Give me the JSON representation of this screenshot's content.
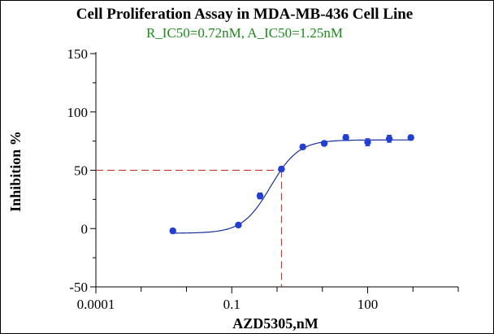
{
  "colors": {
    "subtitle": "#1a8a1a",
    "series": "#1f3fd6",
    "curve": "#1a2f9a",
    "guide": "#cc2222",
    "axis": "#000000"
  },
  "chart_data": {
    "type": "scatter",
    "title": "Cell Proliferation  Assay in  MDA-MB-436 Cell Line",
    "subtitle": "R_IC50=0.72nM,  A_IC50=1.25nM",
    "xlabel": "AZD5305,nM",
    "ylabel": "Inhibition  %",
    "x_scale": "log",
    "xlim": [
      0.0001,
      10000
    ],
    "ylim": [
      -50,
      150
    ],
    "x_ticks": [
      0.0001,
      0.1,
      100
    ],
    "x_tick_labels": [
      "0.0001",
      "0.1",
      "100"
    ],
    "y_ticks": [
      -50,
      0,
      50,
      100,
      150
    ],
    "y_tick_labels": [
      "-50",
      "0",
      "50",
      "100",
      "150"
    ],
    "grid": false,
    "series": [
      {
        "x": [
          0.005,
          0.14,
          0.42,
          1.25,
          3.7,
          11,
          33,
          100,
          300,
          900
        ],
        "y": [
          -2,
          3,
          28,
          51,
          70,
          73,
          78,
          74,
          77,
          78
        ],
        "y_err": [
          2,
          1.5,
          2.5,
          2,
          2,
          2,
          2.5,
          3,
          3,
          2
        ]
      }
    ],
    "fit_curve": {
      "model": "4PL",
      "bottom": -4,
      "top": 76,
      "ic50": 0.72,
      "hill": 1.4,
      "x_range": [
        0.005,
        900
      ]
    },
    "reference_lines": {
      "y": 50,
      "x": 1.25
    }
  }
}
